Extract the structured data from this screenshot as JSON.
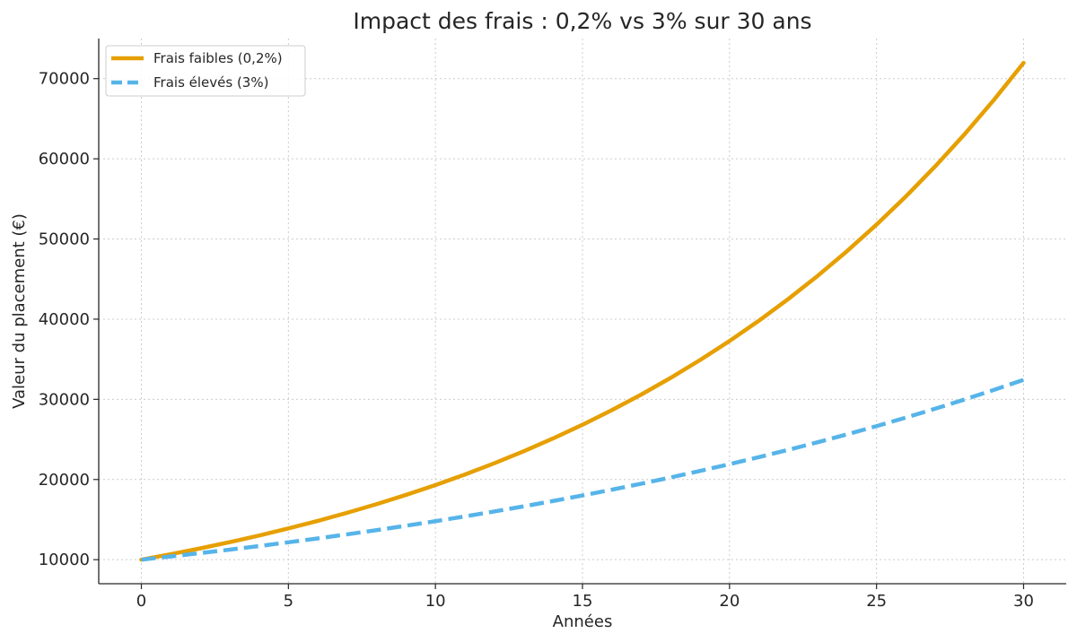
{
  "chart_data": {
    "type": "line",
    "title": "Impact des frais : 0,2% vs 3% sur 30 ans",
    "xlabel": "Années",
    "ylabel": "Valeur du placement (€)",
    "xlim": [
      -1.45,
      31.45
    ],
    "ylim": [
      7000,
      75000
    ],
    "xticks": [
      0,
      5,
      10,
      15,
      20,
      25,
      30
    ],
    "yticks": [
      10000,
      20000,
      30000,
      40000,
      50000,
      60000,
      70000
    ],
    "grid": true,
    "legend_position": "top-left",
    "x": [
      0,
      1,
      2,
      3,
      4,
      5,
      6,
      7,
      8,
      9,
      10,
      11,
      12,
      13,
      14,
      15,
      16,
      17,
      18,
      19,
      20,
      21,
      22,
      23,
      24,
      25,
      26,
      27,
      28,
      29,
      30
    ],
    "series": [
      {
        "name": "Frais faibles (0,2%)",
        "color": "#E69F00",
        "style": "solid",
        "values": [
          10000,
          10680,
          11406,
          12182,
          13010,
          13895,
          14840,
          15849,
          16927,
          18078,
          19307,
          20620,
          22022,
          23520,
          25119,
          26827,
          28651,
          30600,
          32680,
          34903,
          37276,
          39811,
          42518,
          45409,
          48497,
          51795,
          55317,
          59079,
          63096,
          67387,
          71969
        ]
      },
      {
        "name": "Frais élevés (3%)",
        "color": "#56B4E9",
        "style": "dashed",
        "values": [
          10000,
          10400,
          10816,
          11249,
          11699,
          12167,
          12653,
          13159,
          13686,
          14233,
          14802,
          15395,
          16010,
          16651,
          17317,
          18009,
          18730,
          19479,
          20258,
          21068,
          21911,
          22788,
          23699,
          24647,
          25633,
          26658,
          27725,
          28834,
          29987,
          31187,
          32434
        ]
      }
    ]
  }
}
